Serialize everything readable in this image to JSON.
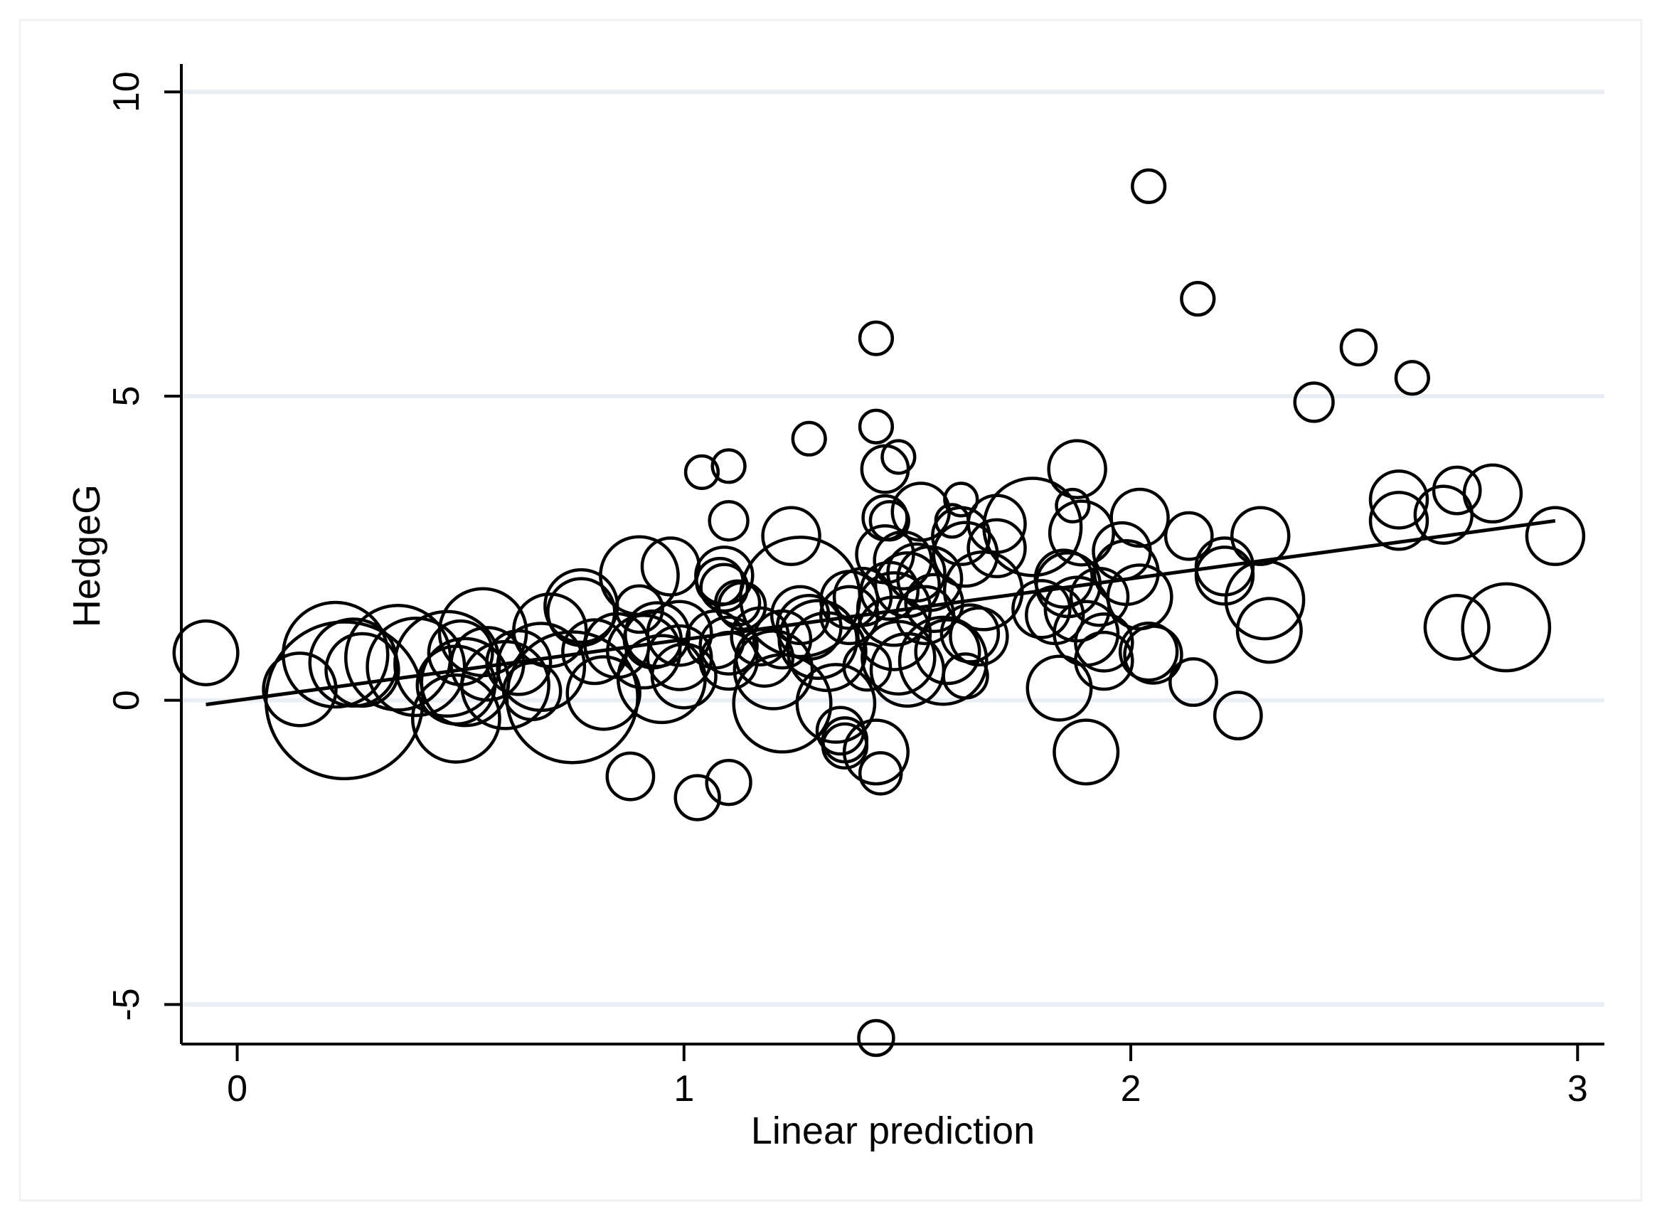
{
  "chart_data": {
    "type": "scatter",
    "title": "",
    "xlabel": "Linear prediction",
    "ylabel": "HedgeG",
    "xlim": [
      -0.125,
      3.06
    ],
    "ylim": [
      -5.65,
      10.4
    ],
    "xticks": [
      0,
      1,
      2,
      3
    ],
    "xtick_labels": [
      "0",
      "1",
      "2",
      "3"
    ],
    "yticks": [
      -5,
      0,
      5,
      10
    ],
    "ytick_labels": [
      "-5",
      "0",
      "5",
      "10"
    ],
    "grid": "horizontal",
    "marker": "hollow circle, area proportional to weight",
    "fit_line": {
      "x": [
        -0.07,
        2.95
      ],
      "y": [
        -0.07,
        2.95
      ]
    },
    "points": [
      {
        "x": -0.07,
        "y": 0.78,
        "w": 0.8
      },
      {
        "x": 0.14,
        "y": 0.18,
        "w": 1.1
      },
      {
        "x": 0.22,
        "y": 0.75,
        "w": 2.6
      },
      {
        "x": 0.24,
        "y": 0.0,
        "w": 6.4
      },
      {
        "x": 0.26,
        "y": 0.62,
        "w": 1.7
      },
      {
        "x": 0.28,
        "y": 0.5,
        "w": 1.1
      },
      {
        "x": 0.36,
        "y": 0.7,
        "w": 2.6
      },
      {
        "x": 0.4,
        "y": 0.55,
        "w": 2.2
      },
      {
        "x": 0.47,
        "y": 0.6,
        "w": 2.6
      },
      {
        "x": 0.49,
        "y": -0.3,
        "w": 1.7
      },
      {
        "x": 0.49,
        "y": 0.25,
        "w": 1.3
      },
      {
        "x": 0.5,
        "y": 0.78,
        "w": 0.8
      },
      {
        "x": 0.51,
        "y": 0.3,
        "w": 1.7
      },
      {
        "x": 0.55,
        "y": 1.12,
        "w": 1.7
      },
      {
        "x": 0.56,
        "y": 0.6,
        "w": 1.1
      },
      {
        "x": 0.6,
        "y": 0.25,
        "w": 1.7
      },
      {
        "x": 0.63,
        "y": 0.62,
        "w": 0.8
      },
      {
        "x": 0.66,
        "y": 0.15,
        "w": 0.6
      },
      {
        "x": 0.68,
        "y": 0.55,
        "w": 1.7
      },
      {
        "x": 0.7,
        "y": 1.15,
        "w": 1.1
      },
      {
        "x": 0.75,
        "y": 0.05,
        "w": 4.3
      },
      {
        "x": 0.77,
        "y": 1.55,
        "w": 1.1
      },
      {
        "x": 0.77,
        "y": 1.45,
        "w": 0.9
      },
      {
        "x": 0.8,
        "y": 0.8,
        "w": 0.8
      },
      {
        "x": 0.82,
        "y": 0.12,
        "w": 1.1
      },
      {
        "x": 0.85,
        "y": 0.9,
        "w": 0.8
      },
      {
        "x": 0.88,
        "y": -1.25,
        "w": 0.35
      },
      {
        "x": 0.9,
        "y": 2.05,
        "w": 1.3
      },
      {
        "x": 0.9,
        "y": 1.5,
        "w": 0.35
      },
      {
        "x": 0.91,
        "y": 0.8,
        "w": 1.1
      },
      {
        "x": 0.93,
        "y": 1.0,
        "w": 0.6
      },
      {
        "x": 0.94,
        "y": 1.08,
        "w": 0.8
      },
      {
        "x": 0.95,
        "y": 0.35,
        "w": 1.7
      },
      {
        "x": 0.97,
        "y": 2.2,
        "w": 0.6
      },
      {
        "x": 0.99,
        "y": 0.7,
        "w": 0.8
      },
      {
        "x": 0.99,
        "y": 1.1,
        "w": 0.8
      },
      {
        "x": 1.0,
        "y": 0.4,
        "w": 0.8
      },
      {
        "x": 1.03,
        "y": -1.6,
        "w": 0.3
      },
      {
        "x": 1.04,
        "y": 3.75,
        "w": 0.12
      },
      {
        "x": 1.07,
        "y": 1.0,
        "w": 0.6
      },
      {
        "x": 1.08,
        "y": 1.95,
        "w": 0.35
      },
      {
        "x": 1.09,
        "y": 2.05,
        "w": 0.6
      },
      {
        "x": 1.09,
        "y": 1.85,
        "w": 0.35
      },
      {
        "x": 1.1,
        "y": 3.85,
        "w": 0.12
      },
      {
        "x": 1.1,
        "y": 2.95,
        "w": 0.2
      },
      {
        "x": 1.1,
        "y": -1.35,
        "w": 0.3
      },
      {
        "x": 1.1,
        "y": 0.9,
        "w": 0.6
      },
      {
        "x": 1.1,
        "y": 0.65,
        "w": 0.6
      },
      {
        "x": 1.12,
        "y": 1.6,
        "w": 0.3
      },
      {
        "x": 1.13,
        "y": 1.55,
        "w": 0.35
      },
      {
        "x": 1.17,
        "y": 1.05,
        "w": 0.6
      },
      {
        "x": 1.18,
        "y": 0.7,
        "w": 0.6
      },
      {
        "x": 1.2,
        "y": 0.5,
        "w": 1.3
      },
      {
        "x": 1.22,
        "y": 1.0,
        "w": 0.6
      },
      {
        "x": 1.22,
        "y": -0.05,
        "w": 2.2
      },
      {
        "x": 1.24,
        "y": 2.7,
        "w": 0.6
      },
      {
        "x": 1.26,
        "y": 1.7,
        "w": 3.5
      },
      {
        "x": 1.26,
        "y": 1.4,
        "w": 0.6
      },
      {
        "x": 1.28,
        "y": 4.3,
        "w": 0.12
      },
      {
        "x": 1.28,
        "y": 1.2,
        "w": 0.8
      },
      {
        "x": 1.3,
        "y": 1.0,
        "w": 1.3
      },
      {
        "x": 1.32,
        "y": 0.8,
        "w": 1.3
      },
      {
        "x": 1.34,
        "y": -0.05,
        "w": 1.3
      },
      {
        "x": 1.35,
        "y": -0.5,
        "w": 0.35
      },
      {
        "x": 1.36,
        "y": -0.65,
        "w": 0.3
      },
      {
        "x": 1.36,
        "y": -0.75,
        "w": 0.3
      },
      {
        "x": 1.37,
        "y": 1.65,
        "w": 0.6
      },
      {
        "x": 1.37,
        "y": 1.4,
        "w": 0.6
      },
      {
        "x": 1.4,
        "y": 1.7,
        "w": 0.6
      },
      {
        "x": 1.41,
        "y": 0.55,
        "w": 0.35
      },
      {
        "x": 1.43,
        "y": 5.95,
        "w": 0.12
      },
      {
        "x": 1.43,
        "y": 4.5,
        "w": 0.12
      },
      {
        "x": 1.43,
        "y": -5.55,
        "w": 0.15
      },
      {
        "x": 1.43,
        "y": -0.85,
        "w": 0.8
      },
      {
        "x": 1.44,
        "y": -1.2,
        "w": 0.25
      },
      {
        "x": 1.45,
        "y": 3.8,
        "w": 0.35
      },
      {
        "x": 1.45,
        "y": 3.0,
        "w": 0.3
      },
      {
        "x": 1.45,
        "y": 2.4,
        "w": 0.6
      },
      {
        "x": 1.46,
        "y": 2.95,
        "w": 0.2
      },
      {
        "x": 1.46,
        "y": 1.8,
        "w": 0.6
      },
      {
        "x": 1.47,
        "y": 1.5,
        "w": 1.1
      },
      {
        "x": 1.47,
        "y": 1.1,
        "w": 1.1
      },
      {
        "x": 1.48,
        "y": 4.0,
        "w": 0.12
      },
      {
        "x": 1.48,
        "y": 0.7,
        "w": 1.1
      },
      {
        "x": 1.49,
        "y": 2.3,
        "w": 0.6
      },
      {
        "x": 1.5,
        "y": 0.5,
        "w": 1.1
      },
      {
        "x": 1.5,
        "y": 1.9,
        "w": 0.8
      },
      {
        "x": 1.52,
        "y": 2.1,
        "w": 0.6
      },
      {
        "x": 1.53,
        "y": 3.1,
        "w": 0.6
      },
      {
        "x": 1.54,
        "y": 1.4,
        "w": 0.6
      },
      {
        "x": 1.55,
        "y": 2.0,
        "w": 0.8
      },
      {
        "x": 1.56,
        "y": 1.6,
        "w": 0.6
      },
      {
        "x": 1.58,
        "y": 0.65,
        "w": 1.7
      },
      {
        "x": 1.59,
        "y": 0.8,
        "w": 0.8
      },
      {
        "x": 1.6,
        "y": 2.95,
        "w": 0.12
      },
      {
        "x": 1.62,
        "y": 3.3,
        "w": 0.12
      },
      {
        "x": 1.62,
        "y": 2.7,
        "w": 0.6
      },
      {
        "x": 1.63,
        "y": 2.4,
        "w": 0.8
      },
      {
        "x": 1.63,
        "y": 0.4,
        "w": 0.3
      },
      {
        "x": 1.64,
        "y": 1.1,
        "w": 0.6
      },
      {
        "x": 1.66,
        "y": 1.05,
        "w": 0.6
      },
      {
        "x": 1.67,
        "y": 1.8,
        "w": 1.3
      },
      {
        "x": 1.7,
        "y": 2.9,
        "w": 0.6
      },
      {
        "x": 1.7,
        "y": 2.5,
        "w": 0.6
      },
      {
        "x": 1.78,
        "y": 2.85,
        "w": 2.2
      },
      {
        "x": 1.8,
        "y": 1.5,
        "w": 0.6
      },
      {
        "x": 1.83,
        "y": 1.4,
        "w": 0.6
      },
      {
        "x": 1.84,
        "y": 0.2,
        "w": 0.8
      },
      {
        "x": 1.85,
        "y": 2.0,
        "w": 0.6
      },
      {
        "x": 1.86,
        "y": 1.9,
        "w": 0.8
      },
      {
        "x": 1.87,
        "y": 3.2,
        "w": 0.12
      },
      {
        "x": 1.88,
        "y": 3.8,
        "w": 0.6
      },
      {
        "x": 1.88,
        "y": 1.5,
        "w": 0.8
      },
      {
        "x": 1.89,
        "y": 2.75,
        "w": 0.8
      },
      {
        "x": 1.9,
        "y": -0.85,
        "w": 0.8
      },
      {
        "x": 1.9,
        "y": 1.1,
        "w": 0.8
      },
      {
        "x": 1.93,
        "y": 1.7,
        "w": 0.6
      },
      {
        "x": 1.94,
        "y": 0.95,
        "w": 0.6
      },
      {
        "x": 1.94,
        "y": 0.65,
        "w": 0.6
      },
      {
        "x": 1.98,
        "y": 2.45,
        "w": 0.6
      },
      {
        "x": 1.99,
        "y": 2.1,
        "w": 0.8
      },
      {
        "x": 2.02,
        "y": 3.0,
        "w": 0.6
      },
      {
        "x": 2.02,
        "y": 1.7,
        "w": 0.8
      },
      {
        "x": 2.04,
        "y": 8.45,
        "w": 0.12
      },
      {
        "x": 2.04,
        "y": 0.8,
        "w": 0.6
      },
      {
        "x": 2.05,
        "y": 0.75,
        "w": 0.6
      },
      {
        "x": 2.13,
        "y": 2.7,
        "w": 0.35
      },
      {
        "x": 2.14,
        "y": 0.3,
        "w": 0.35
      },
      {
        "x": 2.15,
        "y": 6.6,
        "w": 0.12
      },
      {
        "x": 2.21,
        "y": 2.2,
        "w": 0.6
      },
      {
        "x": 2.21,
        "y": 2.05,
        "w": 0.6
      },
      {
        "x": 2.24,
        "y": -0.25,
        "w": 0.35
      },
      {
        "x": 2.29,
        "y": 2.7,
        "w": 0.6
      },
      {
        "x": 2.3,
        "y": 1.65,
        "w": 1.3
      },
      {
        "x": 2.31,
        "y": 1.15,
        "w": 0.8
      },
      {
        "x": 2.41,
        "y": 4.9,
        "w": 0.2
      },
      {
        "x": 2.51,
        "y": 5.8,
        "w": 0.15
      },
      {
        "x": 2.6,
        "y": 3.3,
        "w": 0.6
      },
      {
        "x": 2.6,
        "y": 2.95,
        "w": 0.6
      },
      {
        "x": 2.63,
        "y": 5.3,
        "w": 0.12
      },
      {
        "x": 2.7,
        "y": 3.05,
        "w": 0.6
      },
      {
        "x": 2.73,
        "y": 3.45,
        "w": 0.35
      },
      {
        "x": 2.73,
        "y": 1.2,
        "w": 0.8
      },
      {
        "x": 2.81,
        "y": 3.4,
        "w": 0.6
      },
      {
        "x": 2.84,
        "y": 1.2,
        "w": 1.7
      },
      {
        "x": 2.95,
        "y": 2.7,
        "w": 0.6
      }
    ]
  }
}
